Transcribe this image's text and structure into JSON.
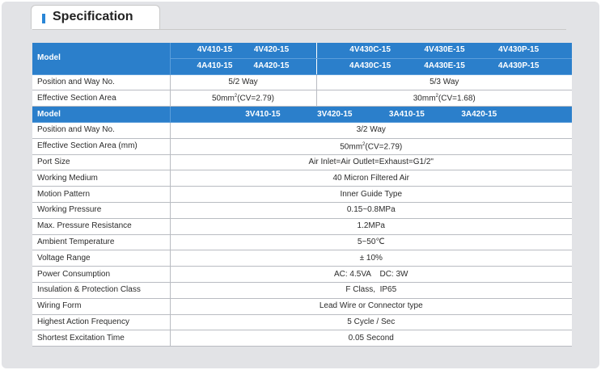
{
  "header": {
    "title": "Specification"
  },
  "table1": {
    "model_label": "Model",
    "group_a": {
      "row1": [
        "4V410-15",
        "4V420-15"
      ],
      "row2": [
        "4A410-15",
        "4A420-15"
      ]
    },
    "group_b": {
      "row1": [
        "4V430C-15",
        "4V430E-15",
        "4V430P-15"
      ],
      "row2": [
        "4A430C-15",
        "4A430E-15",
        "4A430P-15"
      ]
    },
    "position_label": "Position and Way No.",
    "position_a": "5/2 Way",
    "position_b": "5/3 Way",
    "section_label": "Effective Section Area",
    "section_a_pre": "50mm",
    "section_a_post": "(CV=2.79)",
    "section_b_pre": "30mm",
    "section_b_post": "(CV=1.68)",
    "sup": "2"
  },
  "table2": {
    "model_label": "Model",
    "models": [
      "3V410-15",
      "3V420-15",
      "3A410-15",
      "3A420-15"
    ],
    "rows": [
      {
        "label": "Position and Way No.",
        "value": "3/2 Way"
      },
      {
        "label": "Effective Section Area (mm)",
        "value_pre": "50mm",
        "sup": "2",
        "value_post": "(CV=2.79)"
      },
      {
        "label": "Port Size",
        "value": "Air Inlet=Air Outlet=Exhaust=G1/2\""
      },
      {
        "label": "Working Medium",
        "value": "40 Micron Filtered Air"
      },
      {
        "label": "Motion Pattern",
        "value": "Inner Guide Type"
      },
      {
        "label": "Working Pressure",
        "value": "0.15~0.8MPa"
      },
      {
        "label": "Max. Pressure Resistance",
        "value": "1.2MPa"
      },
      {
        "label": "Ambient Temperature",
        "value": "5~50℃"
      },
      {
        "label": "Voltage Range",
        "value": "± 10%"
      },
      {
        "label": "Power Consumption",
        "value": "AC: 4.5VA    DC: 3W"
      },
      {
        "label": "Insulation & Protection Class",
        "value": "F Class,  IP65"
      },
      {
        "label": "Wiring Form",
        "value": "Lead Wire or Connector type"
      },
      {
        "label": "Highest Action Frequency",
        "value": "5 Cycle / Sec"
      },
      {
        "label": "Shortest Excitation Time",
        "value": "0.05 Second"
      }
    ]
  },
  "colors": {
    "header_blue": "#2b7fcb",
    "accent_bar": "#2a86d6",
    "panel_bg": "#e2e3e6"
  }
}
